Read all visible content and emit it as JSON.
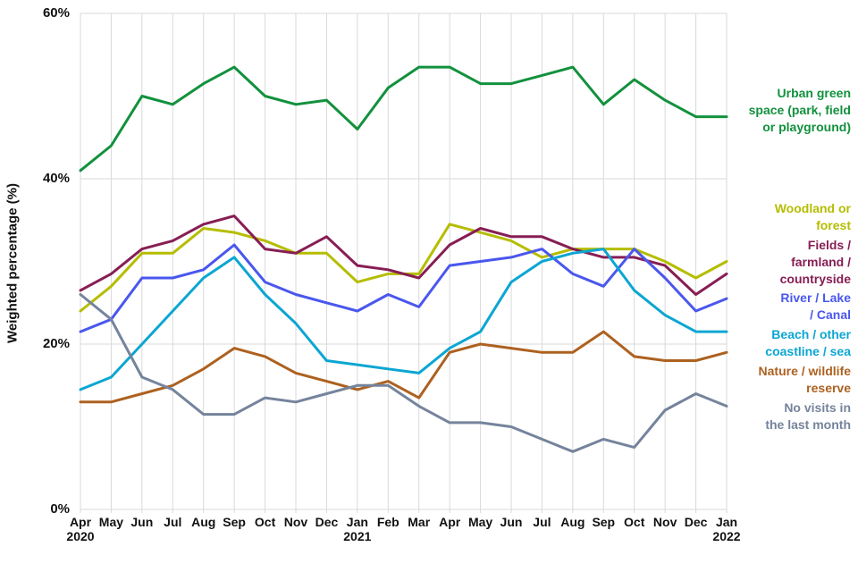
{
  "chart_data": {
    "type": "line",
    "title": "",
    "xlabel": "",
    "ylabel": "Weighted percentage (%)",
    "ylim": [
      0,
      60
    ],
    "grid": "both",
    "legend_position": "right",
    "y_ticks": [
      {
        "value": 0,
        "label": "0%"
      },
      {
        "value": 20,
        "label": "20%"
      },
      {
        "value": 40,
        "label": "40%"
      },
      {
        "value": 60,
        "label": "60%"
      }
    ],
    "x_labels": [
      {
        "month": "Apr",
        "year": "2020"
      },
      {
        "month": "May"
      },
      {
        "month": "Jun"
      },
      {
        "month": "Jul"
      },
      {
        "month": "Aug"
      },
      {
        "month": "Sep"
      },
      {
        "month": "Oct"
      },
      {
        "month": "Nov"
      },
      {
        "month": "Dec"
      },
      {
        "month": "Jan",
        "year": "2021"
      },
      {
        "month": "Feb"
      },
      {
        "month": "Mar"
      },
      {
        "month": "Apr"
      },
      {
        "month": "May"
      },
      {
        "month": "Jun"
      },
      {
        "month": "Jul"
      },
      {
        "month": "Aug"
      },
      {
        "month": "Sep"
      },
      {
        "month": "Oct"
      },
      {
        "month": "Nov"
      },
      {
        "month": "Dec"
      },
      {
        "month": "Jan",
        "year": "2022"
      }
    ],
    "series": [
      {
        "name": "Urban green space (park, field or playground)",
        "legend_lines": [
          "Urban green",
          "space (park, field",
          "or playground)"
        ],
        "color": "#12913d",
        "values": [
          41,
          44,
          50,
          49,
          51.5,
          53.5,
          50,
          49,
          49.5,
          46,
          51,
          53.5,
          53.5,
          51.5,
          51.5,
          52.5,
          53.5,
          49,
          52,
          49.5,
          47.5,
          47.5
        ]
      },
      {
        "name": "Woodland or forest",
        "legend_lines": [
          "Woodland or",
          "forest"
        ],
        "color": "#b5bd00",
        "values": [
          24,
          27,
          31,
          31,
          34,
          33.5,
          32.5,
          31,
          31,
          27.5,
          28.5,
          28.5,
          34.5,
          33.5,
          32.5,
          30.5,
          31.5,
          31.5,
          31.5,
          30,
          28,
          30
        ]
      },
      {
        "name": "Fields / farmland / countryside",
        "legend_lines": [
          "Fields /",
          "farmland /",
          "countryside"
        ],
        "color": "#871e54",
        "values": [
          26.5,
          28.5,
          31.5,
          32.5,
          34.5,
          35.5,
          31.5,
          31,
          33,
          29.5,
          29,
          28,
          32,
          34,
          33,
          33,
          31.5,
          30.5,
          30.5,
          29.5,
          26,
          28.5
        ]
      },
      {
        "name": "River / Lake / Canal",
        "legend_lines": [
          "River / Lake",
          "/ Canal"
        ],
        "color": "#4a57ee",
        "values": [
          21.5,
          23,
          28,
          28,
          29,
          32,
          27.5,
          26,
          25,
          24,
          26,
          24.5,
          29.5,
          30,
          30.5,
          31.5,
          28.5,
          27,
          31.5,
          28,
          24,
          25.5
        ]
      },
      {
        "name": "Beach / other coastline / sea",
        "legend_lines": [
          "Beach / other",
          "coastline / sea"
        ],
        "color": "#0ca6d2",
        "values": [
          14.5,
          16,
          20,
          24,
          28,
          30.5,
          26,
          22.5,
          18,
          17.5,
          17,
          16.5,
          19.5,
          21.5,
          27.5,
          30,
          31,
          31.5,
          26.5,
          23.5,
          21.5,
          21.5
        ]
      },
      {
        "name": "Nature / wildlife reserve",
        "legend_lines": [
          "Nature / wildlife",
          "reserve"
        ],
        "color": "#ad6120",
        "values": [
          13,
          13,
          14,
          15,
          17,
          19.5,
          18.5,
          16.5,
          15.5,
          14.5,
          15.5,
          13.5,
          19,
          20,
          19.5,
          19,
          19,
          21.5,
          18.5,
          18,
          18,
          19
        ]
      },
      {
        "name": "No visits in the last month",
        "legend_lines": [
          "No visits in",
          "the last month"
        ],
        "color": "#75849c",
        "values": [
          26,
          23,
          16,
          14.5,
          11.5,
          11.5,
          13.5,
          13,
          14,
          15,
          15,
          12.5,
          10.5,
          10.5,
          10,
          8.5,
          7,
          8.5,
          7.5,
          12,
          14,
          12.5
        ]
      }
    ],
    "grid_color": "#d9d9d9"
  }
}
